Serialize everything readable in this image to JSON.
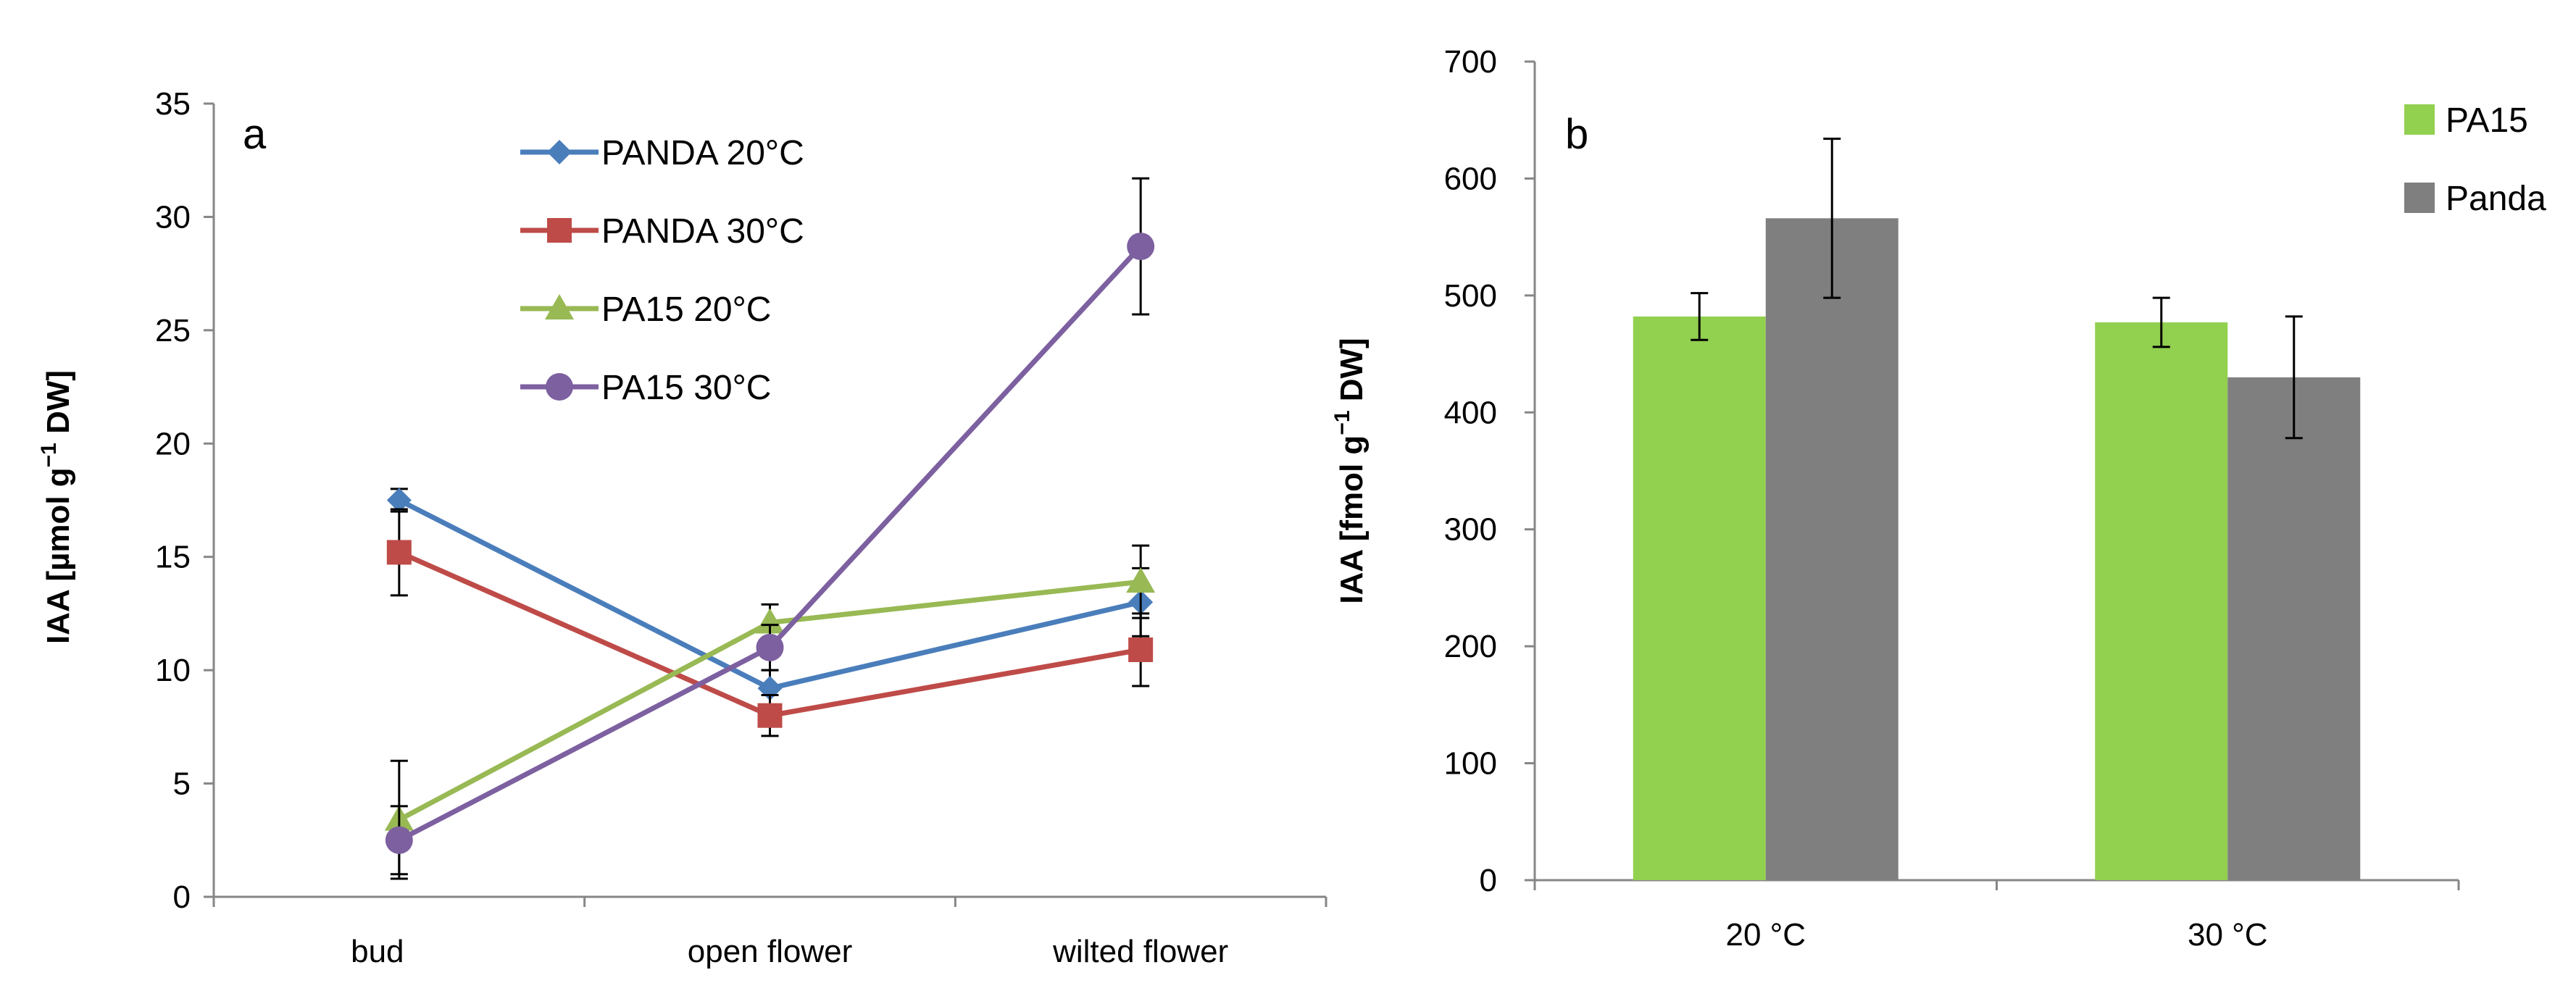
{
  "chart_data": [
    {
      "panel": "a",
      "type": "line",
      "ylabel_main": "IAA [µmol g",
      "ylabel_sup": "−1",
      "ylabel_tail": " DW]",
      "categories": [
        "bud",
        "open flower",
        "wilted flower"
      ],
      "ylim": [
        0,
        35
      ],
      "yticks": [
        "0",
        "5",
        "10",
        "15",
        "20",
        "25",
        "30",
        "35"
      ],
      "legend_position": "top-center",
      "series": [
        {
          "name": "PANDA 20°C",
          "color": "#4a7ebb",
          "marker": "diamond",
          "values": [
            17.5,
            9.2,
            13.0
          ],
          "err": [
            0.5,
            0.8,
            1.5
          ]
        },
        {
          "name": "PANDA 30°C",
          "color": "#be4b48",
          "marker": "square",
          "values": [
            15.2,
            8.0,
            10.9
          ],
          "err": [
            1.9,
            0.9,
            1.6
          ]
        },
        {
          "name": "PA15 20°C",
          "color": "#98b954",
          "marker": "triangle",
          "values": [
            3.4,
            12.1,
            13.9
          ],
          "err": [
            2.6,
            0.8,
            1.6
          ]
        },
        {
          "name": "PA15 30°C",
          "color": "#7d60a0",
          "marker": "circle",
          "values": [
            2.5,
            11.0,
            28.7
          ],
          "err": [
            1.5,
            1.0,
            3.0
          ]
        }
      ]
    },
    {
      "panel": "b",
      "type": "bar",
      "ylabel_main": "IAA [fmol g",
      "ylabel_sup": "−1",
      "ylabel_tail": " DW]",
      "categories": [
        "20 °C",
        "30 °C"
      ],
      "ylim": [
        0,
        700
      ],
      "yticks": [
        "0",
        "100",
        "200",
        "300",
        "400",
        "500",
        "600",
        "700"
      ],
      "legend_position": "top-right",
      "series": [
        {
          "name": "PA15",
          "color": "#92d050",
          "values": [
            482,
            477
          ],
          "err": [
            20,
            21
          ]
        },
        {
          "name": "Panda",
          "color": "#7f7f7f",
          "values": [
            566,
            430
          ],
          "err": [
            68,
            52
          ]
        }
      ]
    }
  ]
}
